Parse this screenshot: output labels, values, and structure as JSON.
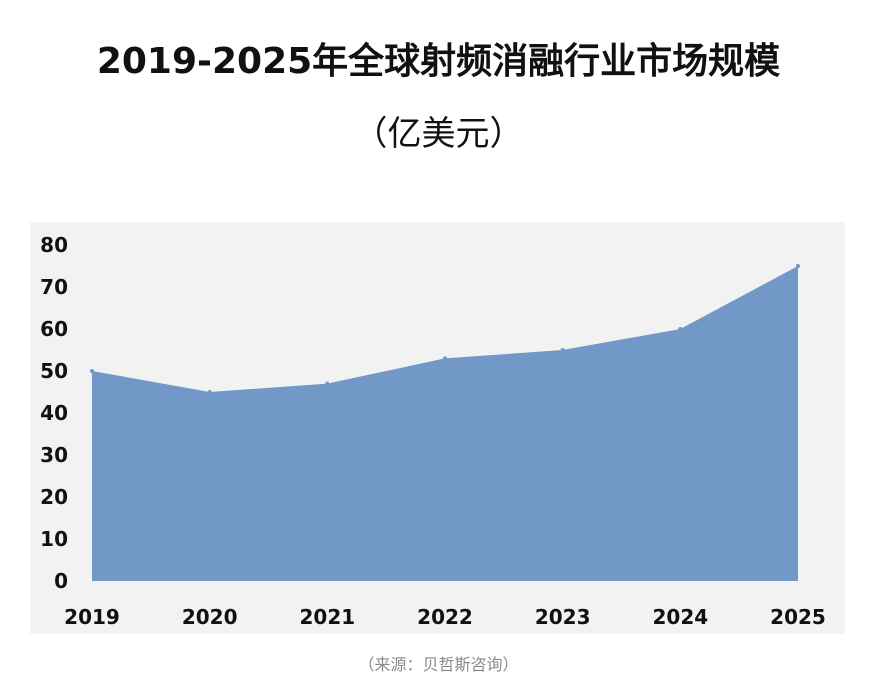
{
  "chart_data": {
    "type": "area",
    "title": "2019-2025年全球射频消融行业市场规模",
    "subtitle": "（亿美元）",
    "categories": [
      "2019",
      "2020",
      "2021",
      "2022",
      "2023",
      "2024",
      "2025"
    ],
    "series": [
      {
        "values": [
          50,
          45,
          47,
          53,
          55,
          60,
          75
        ]
      }
    ],
    "ylim": [
      0,
      80
    ],
    "yticks": [
      0,
      10,
      20,
      30,
      40,
      50,
      60,
      70,
      80
    ],
    "xlabel": "",
    "ylabel": "",
    "grid": false,
    "legend": "none",
    "fill_color": "#7198c6",
    "background_color": "#f2f2f2"
  },
  "source": "（来源：贝哲斯咨询）"
}
